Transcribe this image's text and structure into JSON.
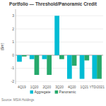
{
  "chart_data": {
    "type": "bar",
    "title": "Portfolio — Threshold/Panoramic Credit",
    "ylabel": "($m)",
    "annotations": [
      "Source: MSIA Holdings"
    ],
    "categories": [
      "4Q19",
      "1Q20",
      "2Q20",
      "3Q20",
      "4Q20",
      "1Q21",
      "YTD/2021"
    ],
    "series": [
      {
        "name": "Aggregate",
        "color": "#00bcd4",
        "values": [
          -0.5,
          -0.3,
          -0.3,
          3.0,
          -1.8,
          -1.8,
          -1.8
        ]
      },
      {
        "name": "Panoramic",
        "color": "#26a96c",
        "values": [
          -0.1,
          -1.5,
          -1.5,
          -0.3,
          -0.8,
          -0.4,
          -1.8
        ]
      }
    ],
    "ylim": [
      -2.2,
      3.5
    ],
    "yticks": [
      -2,
      -1,
      0,
      1,
      2,
      3
    ],
    "grid": true,
    "legend": "bottom"
  }
}
